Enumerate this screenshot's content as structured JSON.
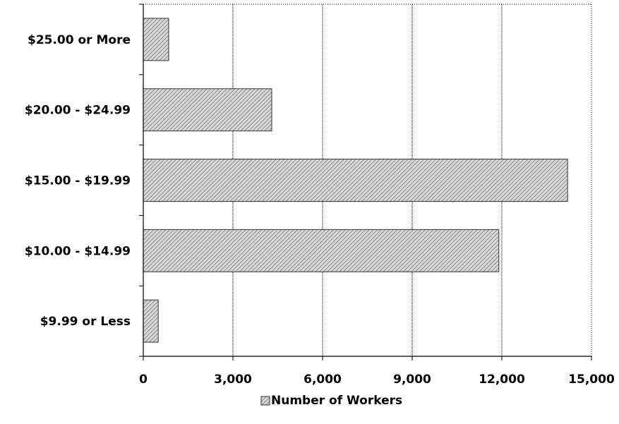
{
  "chart_data": {
    "type": "bar",
    "orientation": "horizontal",
    "categories": [
      "$25.00 or More",
      "$20.00 - $24.99",
      "$15.00 - $19.99",
      "$10.00 - $14.99",
      "$9.99 or Less"
    ],
    "series": [
      {
        "name": "Number of Workers",
        "values": [
          850,
          4300,
          14200,
          11900,
          500
        ]
      }
    ],
    "xlim": [
      0,
      15000
    ],
    "xticks": [
      0,
      3000,
      6000,
      9000,
      12000,
      15000
    ],
    "xtick_labels": [
      "0",
      "3,000",
      "6,000",
      "9,000",
      "12,000",
      "15,000"
    ],
    "grid": true,
    "legend_position": "bottom",
    "colors": {
      "bar_fill": "#d8d8d8",
      "bar_hatch": "#5a5a5a",
      "grid": "#000000",
      "text": "#000000"
    }
  }
}
